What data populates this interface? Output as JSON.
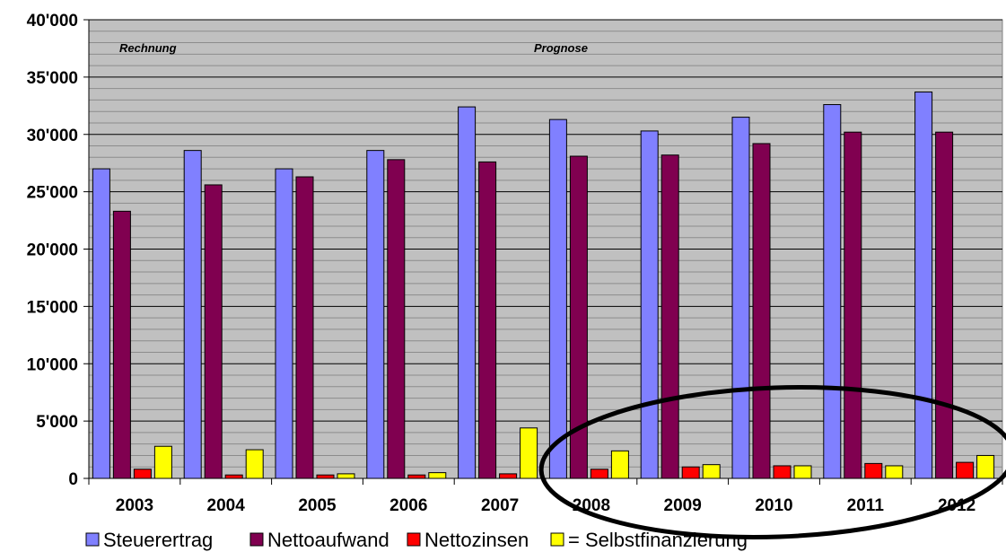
{
  "chart_data": {
    "type": "bar",
    "categories": [
      "2003",
      "2004",
      "2005",
      "2006",
      "2007",
      "2008",
      "2009",
      "2010",
      "2011",
      "2012"
    ],
    "series": [
      {
        "name": "Steuerertrag",
        "color": "#8080ff",
        "values": [
          27000,
          28600,
          27000,
          28600,
          32400,
          31300,
          30300,
          31500,
          32600,
          33700
        ]
      },
      {
        "name": "Nettoaufwand",
        "color": "#800050",
        "values": [
          23300,
          25600,
          26300,
          27800,
          27600,
          28100,
          28200,
          29200,
          30200,
          30200
        ]
      },
      {
        "name": "Nettozinsen",
        "color": "#ff0000",
        "values": [
          800,
          300,
          300,
          300,
          400,
          800,
          1000,
          1100,
          1300,
          1400
        ]
      },
      {
        "name": "= Selbstfinanzierung",
        "color": "#ffff00",
        "values": [
          2800,
          2500,
          400,
          500,
          4400,
          2400,
          1200,
          1100,
          1100,
          2000
        ]
      }
    ],
    "ylim": [
      0,
      40000
    ],
    "y_ticks": [
      0,
      5000,
      10000,
      15000,
      20000,
      25000,
      30000,
      35000,
      40000
    ],
    "y_tick_labels": [
      "0",
      "5'000",
      "10'000",
      "15'000",
      "20'000",
      "25'000",
      "30'000",
      "35'000",
      "40'000"
    ],
    "grid": true,
    "plot_background": "#c0c0c0",
    "legend_position": "bottom",
    "annotations": [
      "Rechnung",
      "Prognose"
    ],
    "title": "",
    "xlabel": "",
    "ylabel": ""
  }
}
